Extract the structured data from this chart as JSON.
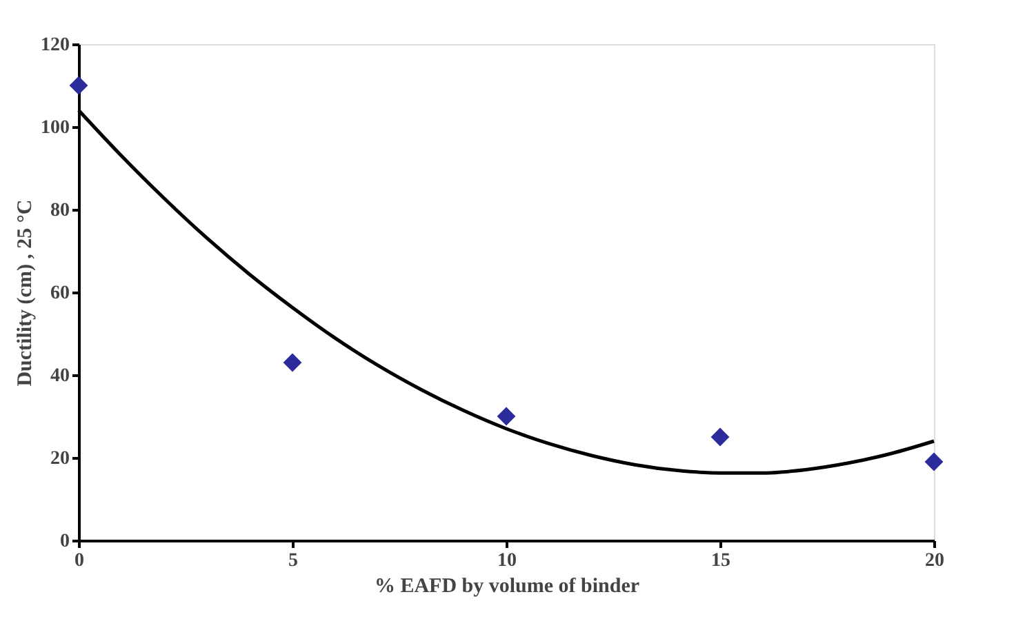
{
  "chart_data": {
    "type": "scatter",
    "xlabel": "% EAFD by volume of binder",
    "ylabel": "Ductility (cm) , 25 °C",
    "xlim": [
      0,
      20
    ],
    "xticks": [
      0,
      5,
      10,
      15,
      20
    ],
    "ylim": [
      0,
      120
    ],
    "yticks": [
      0,
      20,
      40,
      60,
      80,
      100,
      120
    ],
    "grid": false,
    "series": [
      {
        "color": "#2b2b9c",
        "marker": "diamond",
        "x": [
          0,
          5,
          10,
          15,
          20
        ],
        "values": [
          110,
          43,
          30,
          25,
          19
        ]
      },
      {
        "type": "line",
        "color": "#000000",
        "marker": "none",
        "line_style": "solid",
        "x": [
          0,
          1,
          2,
          3,
          4,
          5,
          6,
          7,
          8,
          9,
          10,
          11,
          12,
          13,
          14,
          15,
          16,
          17,
          18,
          19,
          20
        ],
        "values": [
          104,
          93,
          82.7,
          73.1,
          64.3,
          56.3,
          48.9,
          42.3,
          36.5,
          31.4,
          27,
          23.4,
          20.5,
          18.3,
          16.9,
          16.3,
          16.3,
          17.1,
          18.7,
          21,
          24
        ]
      }
    ]
  }
}
